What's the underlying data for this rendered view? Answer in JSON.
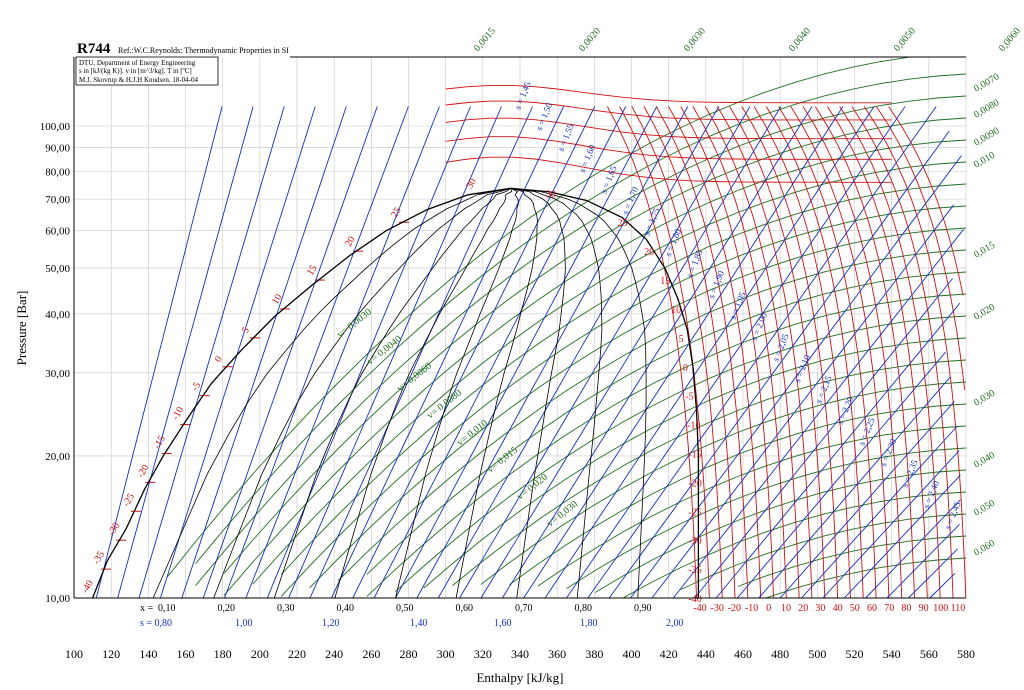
{
  "header": {
    "title": "R744",
    "ref": "Ref.:W.C.Reynolds: Thermodynamic Properties in SI",
    "info_lines": [
      "DTU, Department of Energy Engineering",
      "s in [kJ/(kg K)]. v in [m^3/kg]. T in [ºC]",
      "M.J. Skovrup & H.J.H Knudsen. 18-04-04"
    ]
  },
  "colors": {
    "saturation_curve": "#000000",
    "quality_lines": "#000000",
    "isentropes": "#1030c0",
    "isotherms": "#d01010",
    "isochores": "#207020",
    "grid": "#c8c8c8"
  },
  "chart_data": {
    "type": "line",
    "xlabel": "Enthalpy [kJ/kg]",
    "ylabel": "Pressure [Bar]",
    "xlim": [
      100,
      580
    ],
    "ylim": [
      10,
      120
    ],
    "y_scale": "log",
    "grid": true,
    "x_ticks": [
      "100",
      "120",
      "140",
      "160",
      "180",
      "200",
      "220",
      "240",
      "260",
      "280",
      "300",
      "320",
      "340",
      "360",
      "380",
      "400",
      "420",
      "440",
      "460",
      "480",
      "500",
      "520",
      "540",
      "560",
      "580"
    ],
    "y_ticks": [
      {
        "value": 10,
        "label": "10,00"
      },
      {
        "value": 20,
        "label": "20,00"
      },
      {
        "value": 30,
        "label": "30,00"
      },
      {
        "value": 40,
        "label": "40,00"
      },
      {
        "value": 50,
        "label": "50,00"
      },
      {
        "value": 60,
        "label": "60,00"
      },
      {
        "value": 70,
        "label": "70,00"
      },
      {
        "value": 80,
        "label": "80,00"
      },
      {
        "value": 90,
        "label": "90,00"
      },
      {
        "value": 100,
        "label": "100,00"
      }
    ],
    "critical_point": {
      "h": 335,
      "p": 73.8
    },
    "saturation_liquid": [
      [
        110,
        10
      ],
      [
        118,
        12
      ],
      [
        128,
        14
      ],
      [
        138,
        17
      ],
      [
        148,
        20
      ],
      [
        161,
        24
      ],
      [
        174,
        28.5
      ],
      [
        190,
        33.5
      ],
      [
        208,
        39.5
      ],
      [
        228,
        46
      ],
      [
        248,
        53
      ],
      [
        268,
        60
      ],
      [
        290,
        66.5
      ],
      [
        312,
        71.5
      ],
      [
        335,
        73.8
      ]
    ],
    "saturation_vapor": [
      [
        335,
        73.8
      ],
      [
        356,
        72.5
      ],
      [
        376,
        69.5
      ],
      [
        395,
        64
      ],
      [
        408,
        57.5
      ],
      [
        418,
        50
      ],
      [
        425,
        43
      ],
      [
        430,
        37
      ],
      [
        433,
        31
      ],
      [
        435,
        25
      ],
      [
        436,
        20
      ],
      [
        436,
        15
      ],
      [
        436,
        12
      ],
      [
        436,
        10
      ]
    ],
    "quality_labels": {
      "prefix": "x =",
      "values": [
        "0,10",
        "0,20",
        "0,30",
        "0,40",
        "0,50",
        "0,60",
        "0,70",
        "0,80",
        "0,90"
      ]
    },
    "isentropes": {
      "entropy_scale_labels": [
        "s = 0,80",
        "1,00",
        "1,20",
        "1,40",
        "1,60",
        "1,80",
        "2,00"
      ],
      "curve_labels": [
        "s = 1,45",
        "s = 1,50",
        "s = 1,55",
        "s = 1,60",
        "s = 1,65",
        "s = 1,70",
        "s = 1,75",
        "s = 1,80",
        "s = 1,85",
        "s = 1,90",
        "s = 1,95",
        "s = 2,00",
        "s = 2,05",
        "s = 2,10",
        "s = 2,15",
        "s = 2,20",
        "s = 2,25",
        "s = 2,30",
        "s = 2,35",
        "s = 2,40",
        "s = 2,45"
      ]
    },
    "isotherms": {
      "liquid_side_labels": [
        "-40",
        "-35",
        "-30",
        "-25",
        "-20",
        "-15",
        "-10",
        "-5",
        "0",
        "5",
        "10",
        "15",
        "20",
        "25",
        "30"
      ],
      "vapor_side_labels": [
        "30",
        "25",
        "20",
        "15",
        "10",
        "5",
        "0",
        "-5",
        "-10",
        "-15",
        "-20",
        "-25",
        "-30",
        "-35",
        "-40"
      ],
      "bottom_temperature_labels": [
        "-40",
        "-30",
        "-20",
        "-10",
        "0",
        "10",
        "20",
        "30",
        "40",
        "50",
        "60",
        "70",
        "80",
        "90",
        "100",
        "110"
      ]
    },
    "isochores": {
      "inside_labels": [
        "v= 0,0030",
        "v= 0,0040",
        "v= 0,0060",
        "v= 0,0080",
        "v= 0,010",
        "v= 0,015",
        "v= 0,020",
        "v= 0,030"
      ],
      "top_labels": [
        "0,0015",
        "0,0020",
        "0,0030",
        "0,0040",
        "0,0050",
        "0,0060"
      ],
      "right_labels": [
        "0,0070",
        "0,0080",
        "0,0090",
        "0,010",
        "0,015",
        "0,020",
        "0,030",
        "0,040",
        "0,050",
        "0,060"
      ]
    }
  }
}
